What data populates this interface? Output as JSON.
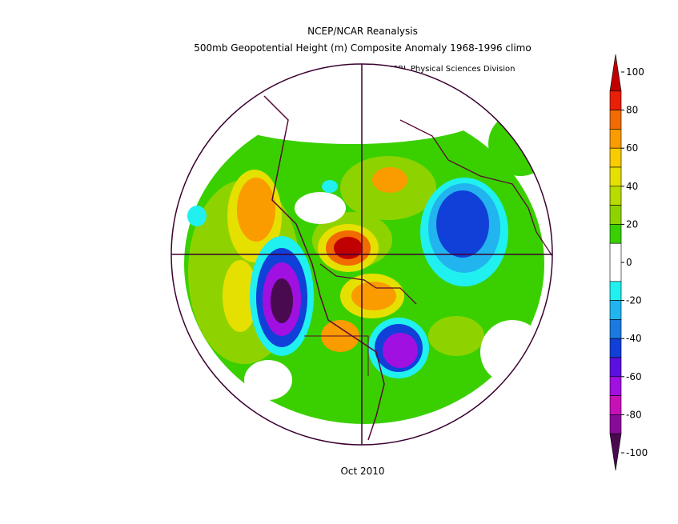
{
  "header": {
    "title": "NCEP/NCAR Reanalysis",
    "subtitle": "500mb Geopotential Height (m) Composite Anomaly 1968-1996 climo",
    "credit": "NOAA/ESRL Physical Sciences Division"
  },
  "footer": {
    "date": "Oct 2010"
  },
  "colorbar": {
    "ticks": [
      {
        "value": 100,
        "label": "100"
      },
      {
        "value": 80,
        "label": "80"
      },
      {
        "value": 60,
        "label": "60"
      },
      {
        "value": 40,
        "label": "40"
      },
      {
        "value": 20,
        "label": "20"
      },
      {
        "value": 0,
        "label": "0"
      },
      {
        "value": -20,
        "label": "-20"
      },
      {
        "value": -40,
        "label": "-40"
      },
      {
        "value": -60,
        "label": "-60"
      },
      {
        "value": -80,
        "label": "-80"
      },
      {
        "value": -100,
        "label": "-100"
      }
    ],
    "bands": [
      {
        "from": 90,
        "to": 100,
        "color": "#c00000"
      },
      {
        "from": 80,
        "to": 90,
        "color": "#e8200a"
      },
      {
        "from": 70,
        "to": 80,
        "color": "#f26b00"
      },
      {
        "from": 60,
        "to": 70,
        "color": "#fa9b00"
      },
      {
        "from": 50,
        "to": 60,
        "color": "#f9cc00"
      },
      {
        "from": 40,
        "to": 50,
        "color": "#e6e000"
      },
      {
        "from": 30,
        "to": 40,
        "color": "#b8dc00"
      },
      {
        "from": 20,
        "to": 30,
        "color": "#8ed300"
      },
      {
        "from": 10,
        "to": 20,
        "color": "#3ad000"
      },
      {
        "from": -10,
        "to": 10,
        "color": "#ffffff"
      },
      {
        "from": -20,
        "to": -10,
        "color": "#20f0f0"
      },
      {
        "from": -30,
        "to": -20,
        "color": "#22b4ee"
      },
      {
        "from": -40,
        "to": -30,
        "color": "#1a7ae0"
      },
      {
        "from": -50,
        "to": -40,
        "color": "#1040d8"
      },
      {
        "from": -60,
        "to": -50,
        "color": "#5a10e0"
      },
      {
        "from": -70,
        "to": -60,
        "color": "#a010e0"
      },
      {
        "from": -80,
        "to": -70,
        "color": "#c810b8"
      },
      {
        "from": -90,
        "to": -80,
        "color": "#8a0a9a"
      },
      {
        "from": -100,
        "to": -90,
        "color": "#4a0a50"
      }
    ]
  }
}
